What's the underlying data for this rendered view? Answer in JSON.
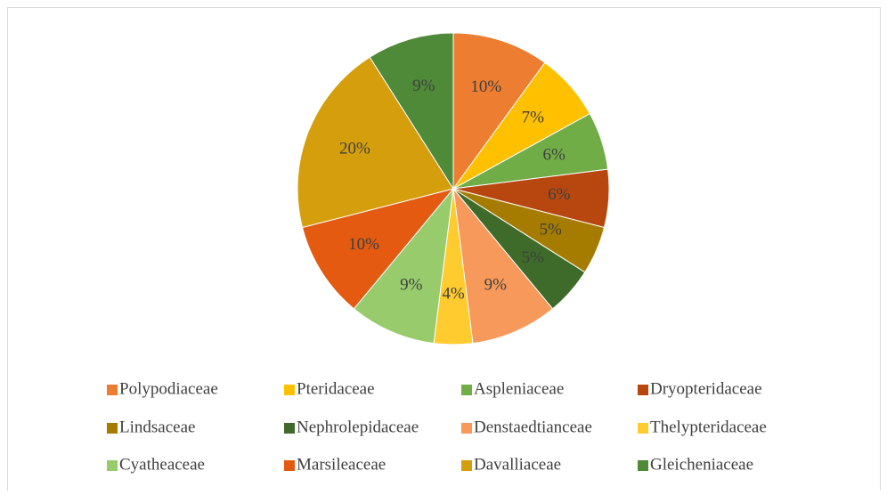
{
  "chart_data": {
    "type": "pie",
    "categories": [
      "Polypodiaceae",
      "Pteridaceae",
      "Aspleniaceae",
      "Dryopteridaceae",
      "Lindsaceae",
      "Nephrolepidaceae",
      "Denstaedtianceae",
      "Thelypteridaceae",
      "Cyatheaceae",
      "Marsileaceae",
      "Davalliaceae",
      "Gleicheniaceae"
    ],
    "values": [
      10,
      7,
      6,
      6,
      5,
      5,
      9,
      4,
      9,
      10,
      20,
      9
    ],
    "value_labels": [
      "10%",
      "7%",
      "6%",
      "6%",
      "5%",
      "5%",
      "9%",
      "4%",
      "9%",
      "10%",
      "20%",
      "9%"
    ],
    "colors": [
      "#ED7D31",
      "#FFC000",
      "#70AD47",
      "#B7470E",
      "#A57C00",
      "#3F6B2A",
      "#F7995A",
      "#FFCB2E",
      "#98CB6C",
      "#E35A10",
      "#D49E0C",
      "#4E8A38"
    ],
    "legend": "bottom"
  }
}
